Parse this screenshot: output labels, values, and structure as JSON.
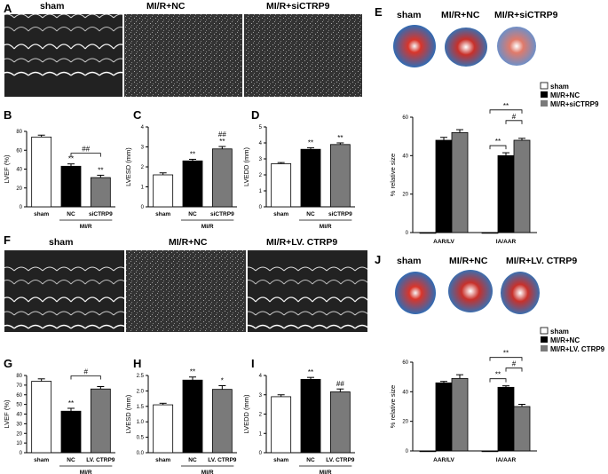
{
  "figure": {
    "panel_labels": [
      "A",
      "B",
      "C",
      "D",
      "E",
      "F",
      "G",
      "H",
      "I",
      "J"
    ],
    "top_echo_headers": [
      "sham",
      "MI/R+NC",
      "MI/R+siCTRP9"
    ],
    "top_stain_headers": [
      "sham",
      "MI/R+NC",
      "MI/R+siCTRP9"
    ],
    "bottom_echo_headers": [
      "sham",
      "MI/R+NC",
      "MI/R+LV. CTRP9"
    ],
    "bottom_stain_headers": [
      "sham",
      "MI/R+NC",
      "MI/R+LV. CTRP9"
    ],
    "legend_top": [
      "sham",
      "MI/R+NC",
      "MI/R+siCTRP9"
    ],
    "legend_bottom": [
      "sham",
      "MI/R+NC",
      "MI/R+LV. CTRP9"
    ],
    "colors": {
      "sham": "#ffffff",
      "nc": "#000000",
      "treat": "#7a7a7a",
      "stain_red": "#d9352a",
      "stain_blue": "#2f6cb5"
    }
  },
  "chart_data": [
    {
      "id": "B",
      "type": "bar",
      "categories": [
        "sham",
        "NC",
        "siCTRP9"
      ],
      "values": [
        74,
        43,
        31
      ],
      "errors": [
        2,
        2.5,
        2.5
      ],
      "ylabel": "LVEF (%)",
      "ylim": [
        0,
        80
      ],
      "yticks": [
        0,
        20,
        40,
        60,
        80
      ],
      "group_label": "MI/R",
      "significance": [
        "",
        "**",
        "**"
      ],
      "brackets": [
        {
          "from": 1,
          "to": 2,
          "label": "##"
        }
      ]
    },
    {
      "id": "C",
      "type": "bar",
      "categories": [
        "sham",
        "NC",
        "siCTRP9"
      ],
      "values": [
        1.6,
        2.3,
        2.9
      ],
      "errors": [
        0.1,
        0.08,
        0.12
      ],
      "ylabel": "LVESD (mm)",
      "ylim": [
        0,
        4
      ],
      "yticks": [
        0,
        1,
        2,
        3,
        4
      ],
      "group_label": "MI/R",
      "significance": [
        "",
        "**",
        "##\n**"
      ],
      "brackets": []
    },
    {
      "id": "D",
      "type": "bar",
      "categories": [
        "sham",
        "NC",
        "siCTRP9"
      ],
      "values": [
        2.7,
        3.6,
        3.9
      ],
      "errors": [
        0.07,
        0.1,
        0.1
      ],
      "ylabel": "LVEDD (mm)",
      "ylim": [
        0,
        5
      ],
      "yticks": [
        0,
        1,
        2,
        3,
        4,
        5
      ],
      "group_label": "MI/R",
      "significance": [
        "",
        "**",
        "**"
      ],
      "brackets": []
    },
    {
      "id": "E",
      "type": "bar",
      "categories": [
        "AAR/LV",
        "IA/AAR"
      ],
      "series": [
        {
          "name": "sham",
          "values": [
            0,
            0
          ],
          "errors": [
            0,
            0
          ]
        },
        {
          "name": "MI/R+NC",
          "values": [
            48,
            40
          ],
          "errors": [
            1.5,
            1.5
          ]
        },
        {
          "name": "MI/R+siCTRP9",
          "values": [
            52,
            48
          ],
          "errors": [
            1.5,
            1
          ]
        }
      ],
      "ylabel": "% relative size",
      "ylim": [
        0,
        60
      ],
      "yticks": [
        0,
        20,
        40,
        60
      ],
      "brackets": [
        {
          "group": 1,
          "from": 0,
          "to": 1,
          "label": "**"
        },
        {
          "group": 1,
          "from": 1,
          "to": 2,
          "label": "#"
        },
        {
          "group": 1,
          "from": 0,
          "to": 2,
          "label": "**"
        }
      ]
    },
    {
      "id": "G",
      "type": "bar",
      "categories": [
        "sham",
        "NC",
        "LV. CTRP9"
      ],
      "values": [
        74,
        43,
        66
      ],
      "errors": [
        2.5,
        3,
        2.5
      ],
      "ylabel": "LVEF (%)",
      "ylim": [
        0,
        80
      ],
      "yticks": [
        0,
        10,
        20,
        30,
        40,
        50,
        60,
        70,
        80
      ],
      "group_label": "MI/R",
      "significance": [
        "",
        "**",
        ""
      ],
      "brackets": [
        {
          "from": 1,
          "to": 2,
          "label": "#"
        }
      ]
    },
    {
      "id": "H",
      "type": "bar",
      "categories": [
        "sham",
        "NC",
        "LV. CTRP9"
      ],
      "values": [
        1.55,
        2.35,
        2.05
      ],
      "errors": [
        0.05,
        0.1,
        0.12
      ],
      "ylabel": "LVESD (mm)",
      "ylim": [
        0,
        2.5
      ],
      "yticks": [
        0,
        0.5,
        1.0,
        1.5,
        2.0,
        2.5
      ],
      "group_label": "MI/R",
      "significance": [
        "",
        "**",
        "*"
      ],
      "brackets": []
    },
    {
      "id": "I",
      "type": "bar",
      "categories": [
        "sham",
        "NC",
        "LV. CTRP9"
      ],
      "values": [
        2.9,
        3.8,
        3.15
      ],
      "errors": [
        0.1,
        0.1,
        0.15
      ],
      "ylabel": "LVEDD (mm)",
      "ylim": [
        0,
        4
      ],
      "yticks": [
        0,
        1,
        2,
        3,
        4
      ],
      "group_label": "MI/R",
      "significance": [
        "",
        "**",
        "##"
      ],
      "brackets": []
    },
    {
      "id": "J",
      "type": "bar",
      "categories": [
        "AAR/LV",
        "IA/AAR"
      ],
      "series": [
        {
          "name": "sham",
          "values": [
            0,
            0
          ],
          "errors": [
            0,
            0
          ]
        },
        {
          "name": "MI/R+NC",
          "values": [
            46,
            43
          ],
          "errors": [
            1,
            1
          ]
        },
        {
          "name": "MI/R+LV. CTRP9",
          "values": [
            49,
            30
          ],
          "errors": [
            2.5,
            1.5
          ]
        }
      ],
      "ylabel": "% relative size",
      "ylim": [
        0,
        60
      ],
      "yticks": [
        0,
        20,
        40,
        60
      ],
      "brackets": [
        {
          "group": 1,
          "from": 0,
          "to": 1,
          "label": "**"
        },
        {
          "group": 1,
          "from": 1,
          "to": 2,
          "label": "#"
        },
        {
          "group": 1,
          "from": 0,
          "to": 2,
          "label": "**"
        }
      ]
    }
  ]
}
